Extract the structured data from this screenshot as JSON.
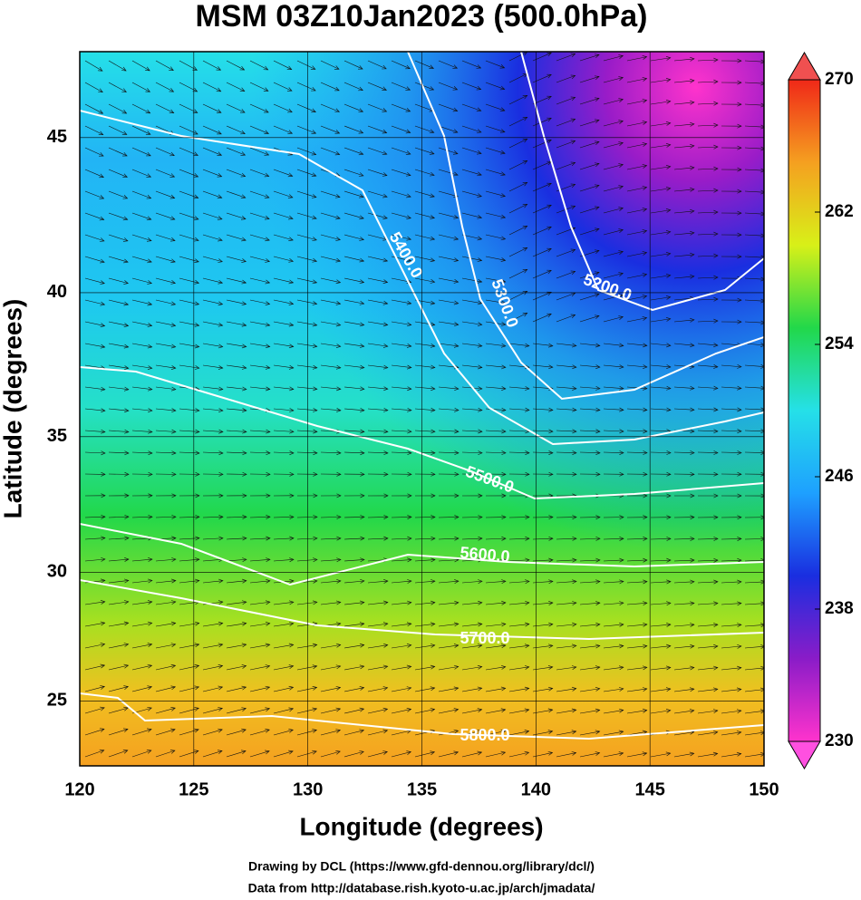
{
  "chart_data": {
    "type": "contour_map",
    "title": "MSM 03Z10Jan2023 (500.0hPa)",
    "x_label": "Longitude (degrees)",
    "y_label": "Latitude  (degrees)",
    "projection": "mercator",
    "xlim": [
      120,
      150
    ],
    "ylim": [
      22.4,
      47.6
    ],
    "xticks": [
      120,
      125,
      130,
      135,
      140,
      145,
      150
    ],
    "yticks": [
      25,
      30,
      35,
      40,
      45
    ],
    "colorbar": {
      "lim": [
        230,
        270
      ],
      "ticks": [
        230,
        238,
        246,
        254,
        262,
        270
      ],
      "colors": [
        "#ff33cc",
        "#8a1cc8",
        "#1a2ee0",
        "#1ea0ff",
        "#25e0e8",
        "#22d84a",
        "#d8f018",
        "#f5a020",
        "#f02818"
      ]
    },
    "contours": {
      "levels": [
        5200,
        5300,
        5400,
        5500,
        5600,
        5700,
        5800
      ],
      "value_labels": [
        "5200.0",
        "5300.0",
        "5400.0",
        "5500.0",
        "5600.0",
        "5700.0",
        "5800.0"
      ]
    },
    "footer": [
      "Drawing by DCL (https://www.gfd-dennou.org/library/dcl/)",
      "Data from http://database.rish.kyoto-u.ac.jp/arch/jmadata/"
    ]
  }
}
